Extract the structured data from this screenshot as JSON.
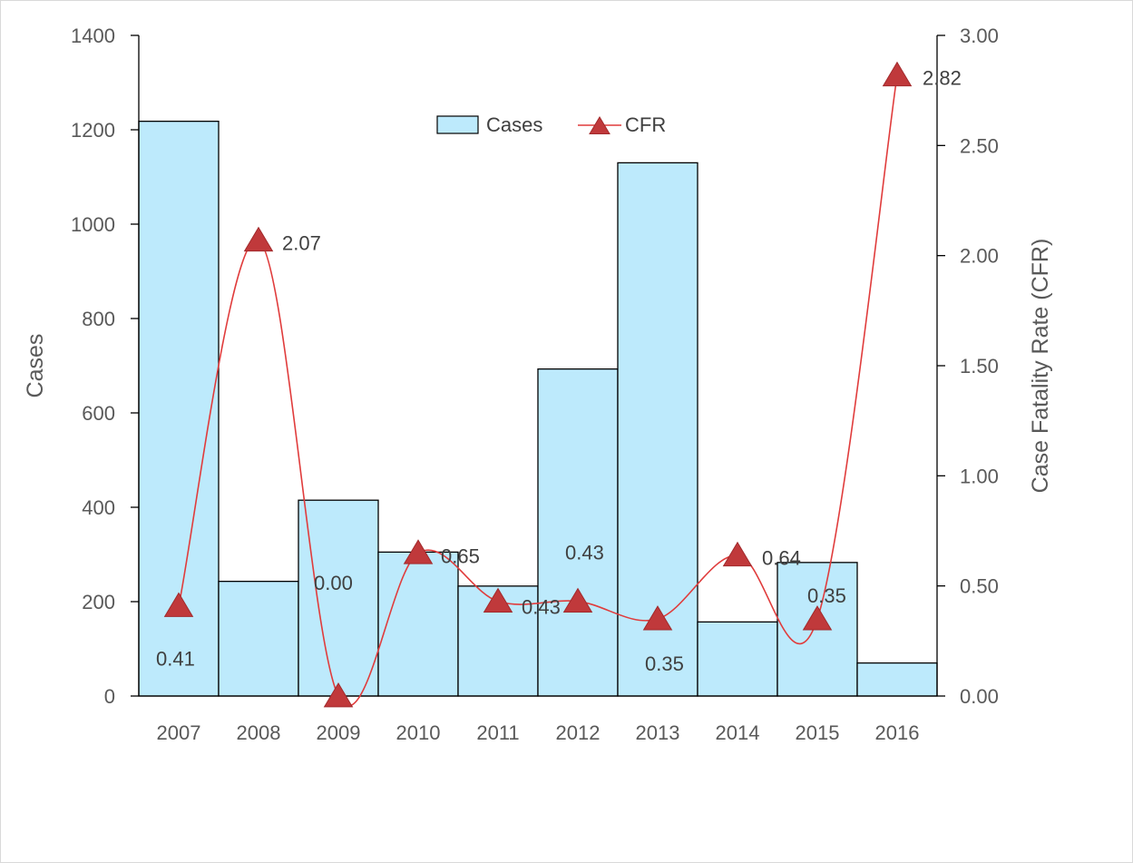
{
  "chart_data": {
    "type": "bar",
    "categories": [
      "2007",
      "2008",
      "2009",
      "2010",
      "2011",
      "2012",
      "2013",
      "2014",
      "2015",
      "2016"
    ],
    "series": [
      {
        "name": "Cases",
        "type": "bar",
        "axis": "left",
        "values": [
          1218,
          243,
          415,
          305,
          233,
          693,
          1130,
          157,
          283,
          70
        ],
        "color": "#bdeafc"
      },
      {
        "name": "CFR",
        "type": "line",
        "axis": "right",
        "values": [
          0.41,
          2.07,
          0.0,
          0.65,
          0.43,
          0.43,
          0.35,
          0.64,
          0.35,
          2.82
        ],
        "labels": [
          "0.41",
          "2.07",
          "0.00",
          "0.65",
          "0.43",
          "0.43",
          "0.35",
          "0.64",
          "0.35",
          "2.82"
        ],
        "color": "#e03c3c"
      }
    ],
    "ylabel": "Cases",
    "y2label": "Case Fatality Rate (CFR)",
    "ylim": [
      0,
      1400
    ],
    "y2lim": [
      0,
      3
    ],
    "yticks": [
      "0",
      "200",
      "400",
      "600",
      "800",
      "1000",
      "1200",
      "1400"
    ],
    "y2ticks": [
      "0.00",
      "0.50",
      "1.00",
      "1.50",
      "2.00",
      "2.50",
      "3.00"
    ],
    "legend": {
      "position": "top-center",
      "entries": [
        "Cases",
        "CFR"
      ]
    },
    "grid": false
  }
}
